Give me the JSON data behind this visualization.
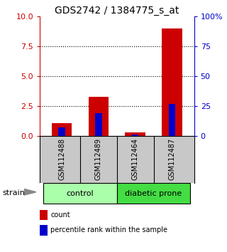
{
  "title": "GDS2742 / 1384775_s_at",
  "samples": [
    "GSM112488",
    "GSM112489",
    "GSM112464",
    "GSM112487"
  ],
  "group_labels": [
    "control",
    "diabetic prone"
  ],
  "group_light_color": "#AAFFAA",
  "group_dark_color": "#44DD44",
  "red_values": [
    1.1,
    3.3,
    0.3,
    9.0
  ],
  "blue_values": [
    7.0,
    19.0,
    1.5,
    27.0
  ],
  "ylim_left": [
    0,
    10
  ],
  "ylim_right": [
    0,
    100
  ],
  "yticks_left": [
    0,
    2.5,
    5,
    7.5,
    10
  ],
  "yticks_right": [
    0,
    25,
    50,
    75,
    100
  ],
  "ytick_labels_right": [
    "0",
    "25",
    "50",
    "75",
    "100%"
  ],
  "red_color": "#CC0000",
  "blue_color": "#0000CC",
  "bg_color": "#FFFFFF",
  "sample_box_color": "#C8C8C8",
  "strain_label": "strain",
  "legend_red": "count",
  "legend_blue": "percentile rank within the sample",
  "left_tick_color": "#CC0000",
  "right_tick_color": "#0000CC",
  "title_fontsize": 10,
  "tick_fontsize": 8,
  "sample_fontsize": 7,
  "group_fontsize": 8,
  "legend_fontsize": 7
}
